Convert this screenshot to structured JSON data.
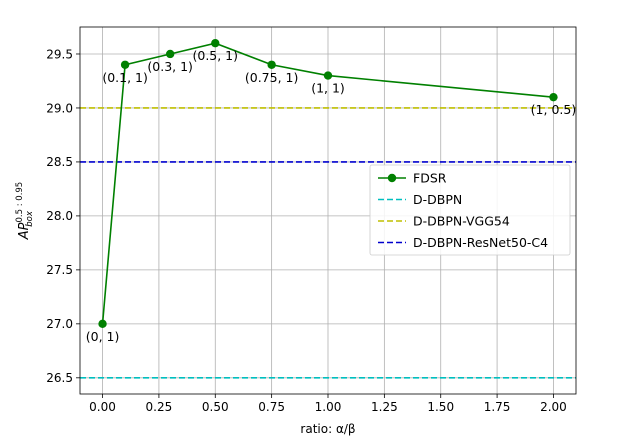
{
  "chart_data": {
    "type": "line",
    "xlabel": "ratio: α/β",
    "ylabel": {
      "base": "AP",
      "superscript": "0.5 : 0.95",
      "subscript": "box"
    },
    "xlim": [
      -0.1,
      2.1
    ],
    "ylim": [
      26.35,
      29.75
    ],
    "xticks": [
      0.0,
      0.25,
      0.5,
      0.75,
      1.0,
      1.25,
      1.5,
      1.75,
      2.0
    ],
    "xtick_labels": [
      "0.00",
      "0.25",
      "0.50",
      "0.75",
      "1.00",
      "1.25",
      "1.50",
      "1.75",
      "2.00"
    ],
    "yticks": [
      26.5,
      27.0,
      27.5,
      28.0,
      28.5,
      29.0,
      29.5
    ],
    "ytick_labels": [
      "26.5",
      "27.0",
      "27.5",
      "28.0",
      "28.5",
      "29.0",
      "29.5"
    ],
    "grid": true,
    "legend_position": "center-right",
    "series": [
      {
        "name": "FDSR",
        "style": "solid-marker",
        "color": "#008000",
        "x": [
          0.0,
          0.1,
          0.3,
          0.5,
          0.75,
          1.0,
          2.0
        ],
        "y": [
          27.0,
          29.4,
          29.5,
          29.6,
          29.4,
          29.3,
          29.1
        ],
        "point_labels": [
          "(0, 1)",
          "(0.1, 1)",
          "(0.3, 1)",
          "(0.5, 1)",
          "(0.75, 1)",
          "(1, 1)",
          "(1, 0.5)"
        ]
      },
      {
        "name": "D-DBPN",
        "style": "dashed-hline",
        "color": "#00bfbf",
        "y": 26.5
      },
      {
        "name": "D-DBPN-VGG54",
        "style": "dashed-hline",
        "color": "#bfbf00",
        "y": 29.0
      },
      {
        "name": "D-DBPN-ResNet50-C4",
        "style": "dashed-hline",
        "color": "#0000cd",
        "y": 28.5
      }
    ]
  }
}
